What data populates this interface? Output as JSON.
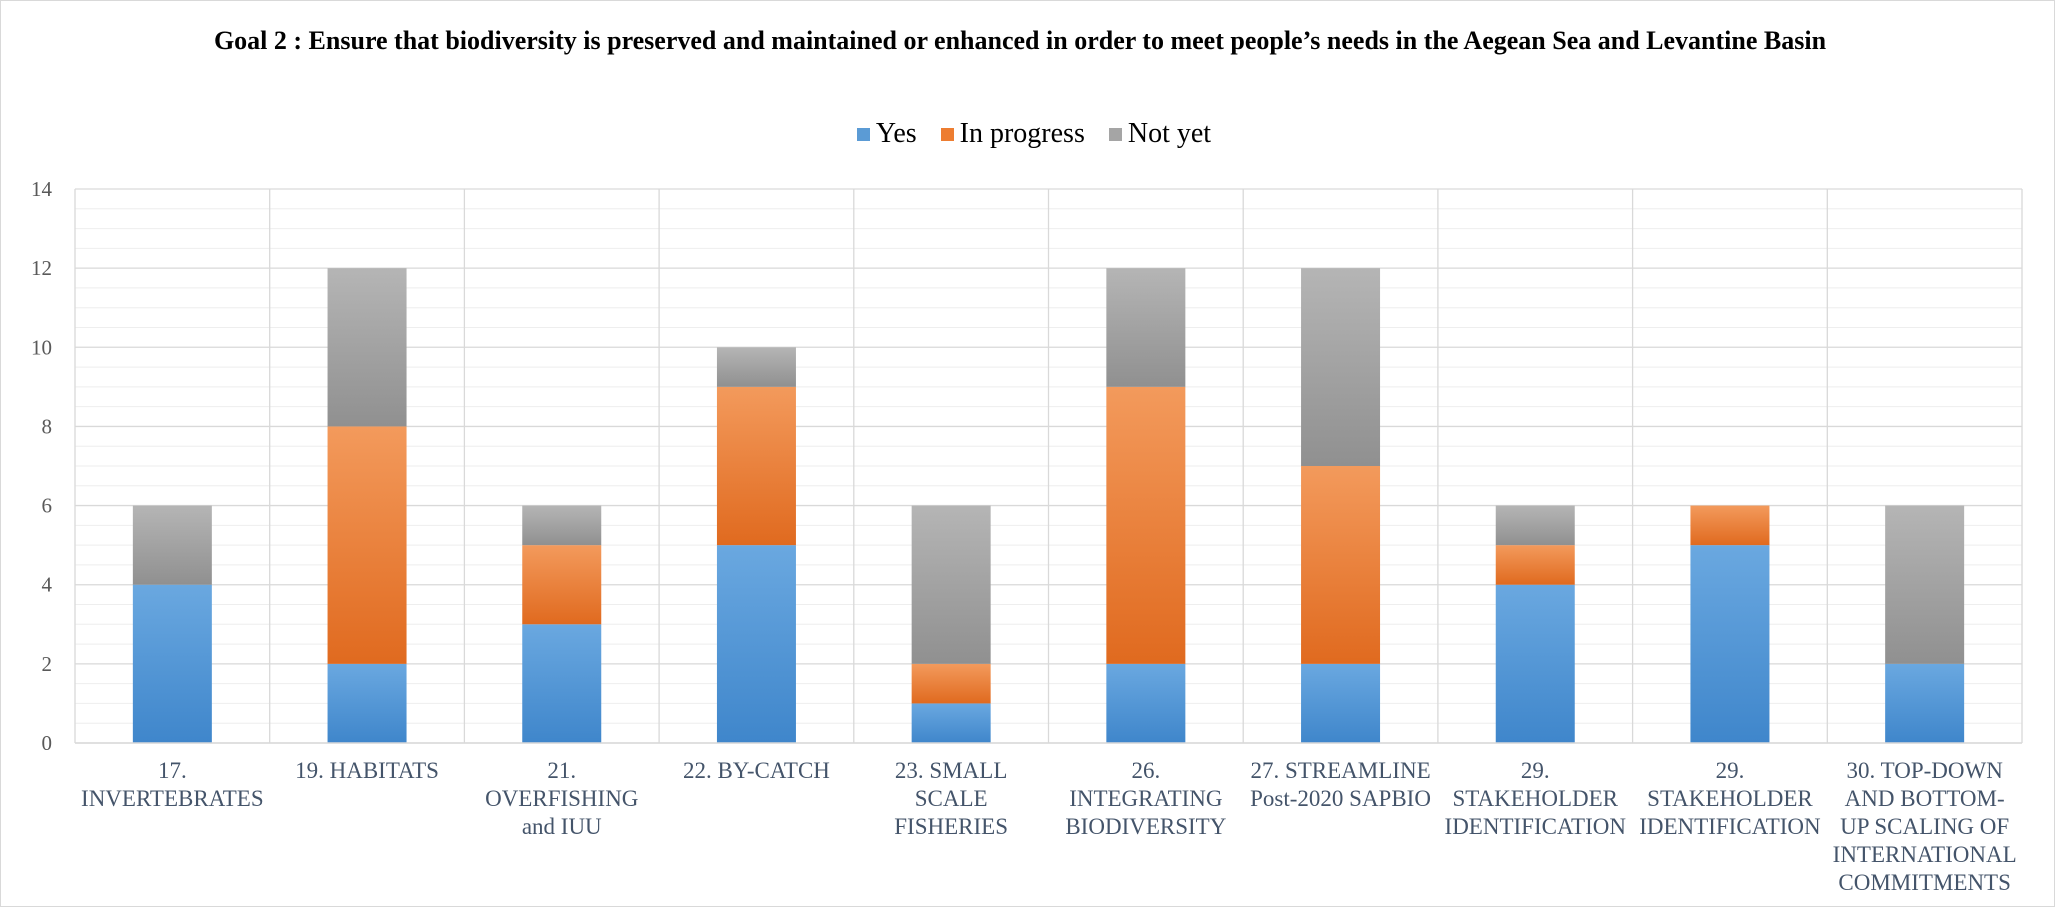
{
  "chart_data": {
    "type": "bar",
    "stacked": true,
    "title": "Goal 2 : Ensure that biodiversity is preserved and maintained or enhanced in order to meet people’s needs in the Aegean Sea and Levantine Basin",
    "legend_position": "top",
    "ylim": [
      0,
      14
    ],
    "y_ticks": [
      0,
      2,
      4,
      6,
      8,
      10,
      12,
      14
    ],
    "grid": true,
    "categories": [
      "17. INVERTEBRATES",
      "19. HABITATS",
      "21. OVERFISHING and IUU",
      "22. BY-CATCH",
      "23. SMALL SCALE FISHERIES",
      "26. INTEGRATING BIODIVERSITY",
      "27. STREAMLINE Post-2020 SAPBIO",
      "29. STAKEHOLDER IDENTIFICATION",
      "29. STAKEHOLDER IDENTIFICATION",
      "30. TOP-DOWN AND BOTTOM-UP SCALING OF INTERNATIONAL COMMITMENTS"
    ],
    "category_label_lines": [
      [
        "17.",
        "INVERTEBRATES"
      ],
      [
        "19. HABITATS"
      ],
      [
        "21.",
        "OVERFISHING",
        "and IUU"
      ],
      [
        "22. BY-CATCH"
      ],
      [
        "23. SMALL",
        "SCALE",
        "FISHERIES"
      ],
      [
        "26.",
        "INTEGRATING",
        "BIODIVERSITY"
      ],
      [
        "27. STREAMLINE",
        "Post-2020 SAPBIO"
      ],
      [
        "29.",
        "STAKEHOLDER",
        "IDENTIFICATION"
      ],
      [
        "29.",
        "STAKEHOLDER",
        "IDENTIFICATION"
      ],
      [
        "30. TOP-DOWN",
        "AND BOTTOM-",
        "UP SCALING OF",
        "INTERNATIONAL",
        "COMMITMENTS"
      ]
    ],
    "series": [
      {
        "name": "Yes",
        "color": "#5b9bd5",
        "values": [
          4,
          2,
          3,
          5,
          1,
          2,
          2,
          4,
          5,
          2
        ]
      },
      {
        "name": "In progress",
        "color": "#ed7d31",
        "values": [
          0,
          6,
          2,
          4,
          1,
          7,
          5,
          1,
          1,
          0
        ]
      },
      {
        "name": "Not yet",
        "color": "#a5a5a5",
        "values": [
          2,
          4,
          1,
          1,
          4,
          3,
          5,
          1,
          0,
          4
        ]
      }
    ]
  }
}
